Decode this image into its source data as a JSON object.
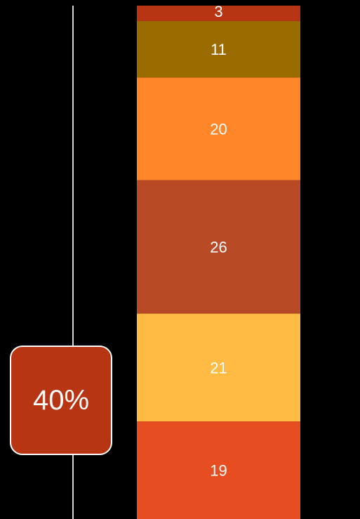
{
  "callout": {
    "value": "40%"
  },
  "chart_data": {
    "type": "bar",
    "stacked": true,
    "orientation": "vertical",
    "segments": [
      {
        "value": 3,
        "label": "3",
        "color": "#b83513"
      },
      {
        "value": 11,
        "label": "11",
        "color": "#9a6c00"
      },
      {
        "value": 20,
        "label": "20",
        "color": "#ff8628"
      },
      {
        "value": 26,
        "label": "26",
        "color": "#b84a26"
      },
      {
        "value": 21,
        "label": "21",
        "color": "#ffbb44"
      },
      {
        "value": 19,
        "label": "19",
        "color": "#e64e22"
      }
    ],
    "total": 100,
    "grid": false,
    "legend": "none"
  }
}
